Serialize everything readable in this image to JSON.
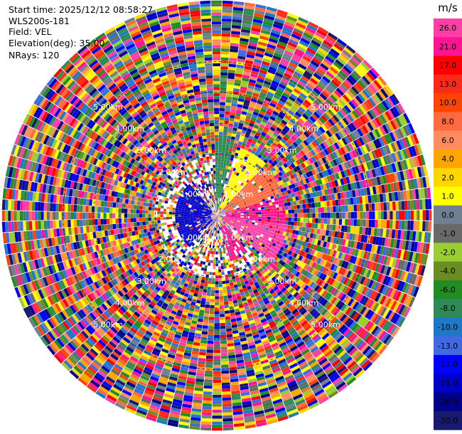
{
  "header": {
    "start_time": "Start time: 2025/12/12 08:58:27",
    "instrument": "WLS200s-181",
    "field": "Field: VEL",
    "elevation": "Elevation(deg): 35.00",
    "nrays": "NRays: 120"
  },
  "colorbar": {
    "unit": "m/s",
    "ticks": [
      "26.0",
      "21.0",
      "17.0",
      "13.0",
      "10.0",
      "8.0",
      "6.0",
      "4.0",
      "2.0",
      "1.0",
      "0.0",
      "-1.0",
      "-2.0",
      "-4.0",
      "-6.0",
      "-8.0",
      "-10.0",
      "-13.0",
      "-17.0",
      "-21.0",
      "-26.0",
      "-30.0"
    ],
    "colors": [
      "#ff3fa6",
      "#ff1493",
      "#ff0000",
      "#ff2a1a",
      "#ff4500",
      "#ff6a40",
      "#ff8c60",
      "#ffa500",
      "#ffd700",
      "#ffff00",
      "#708090",
      "#696969",
      "#9acd32",
      "#6b8e23",
      "#228b22",
      "#2e8b57",
      "#1e78c8",
      "#4169e1",
      "#0000ff",
      "#0000cd",
      "#00008b",
      "#191970"
    ]
  },
  "chart_data": {
    "type": "ppi",
    "field": "VEL",
    "nrays": 120,
    "elevation_deg": 35.0,
    "range_rings_km": [
      1.0,
      2.0,
      3.0,
      4.0,
      5.0
    ],
    "ring_labels": [
      "1.00km",
      "2.00km",
      "3.00km",
      "4.00km",
      "5.00km"
    ],
    "max_range_km": 7.0,
    "velocity_range": [
      -30.0,
      26.0
    ],
    "features": [
      {
        "azimuth_deg": [
          20,
          45
        ],
        "range_km": [
          0.3,
          2.3
        ],
        "color": "#ffff00",
        "value": 3.0
      },
      {
        "azimuth_deg": [
          45,
          75
        ],
        "range_km": [
          0.3,
          2.2
        ],
        "color": "#ff6a40",
        "value": 11.0
      },
      {
        "azimuth_deg": [
          75,
          98
        ],
        "range_km": [
          0.3,
          2.2
        ],
        "color": "#ff1493",
        "value": 22.0
      },
      {
        "azimuth_deg": [
          98,
          130
        ],
        "range_km": [
          0.2,
          2.3
        ],
        "color": "#ff3fa6",
        "value": 24.0
      },
      {
        "azimuth_deg": [
          140,
          165
        ],
        "range_km": [
          0.4,
          1.6
        ],
        "color": "#ff1493",
        "value": 21.0
      },
      {
        "azimuth_deg": [
          0,
          15
        ],
        "range_km": [
          0.2,
          2.6
        ],
        "color": "#2e8b57",
        "value": -7.0
      },
      {
        "azimuth_deg": [
          220,
          320
        ],
        "range_km": [
          0.2,
          1.4
        ],
        "color": "#0000cd",
        "value": -20.0
      }
    ]
  }
}
